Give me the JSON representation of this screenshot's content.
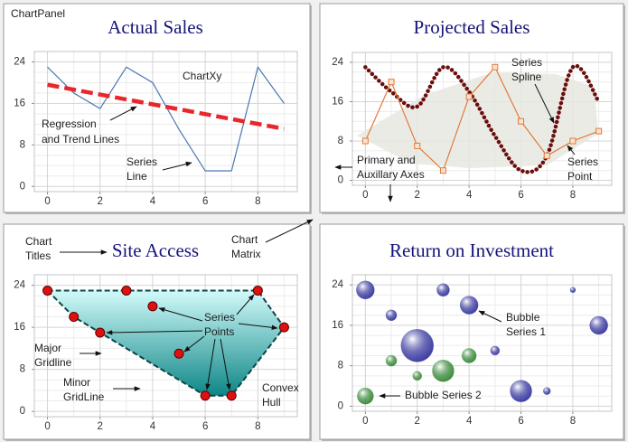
{
  "panel_label": "ChartPanel",
  "chart_data": [
    {
      "type": "line",
      "title": "Actual Sales",
      "x": [
        0,
        1,
        2,
        3,
        4,
        5,
        6,
        7,
        8,
        9
      ],
      "series": [
        {
          "color": "#4a78b0",
          "line_style": "solid",
          "values": [
            23,
            18,
            15,
            23,
            20,
            11,
            3,
            3,
            23,
            16
          ]
        },
        {
          "color": "#e8262b",
          "line_style": "dashed",
          "x": [
            0,
            9
          ],
          "values": [
            19.6,
            11.1
          ]
        }
      ],
      "xlim": [
        -0.5,
        9.5
      ],
      "ylim": [
        -1,
        26
      ],
      "xticks": [
        0,
        2,
        4,
        6,
        8
      ],
      "yticks": [
        0,
        8,
        16,
        24
      ],
      "grid": true,
      "annotations": [
        [
          "ChartXy"
        ],
        [
          "Regression",
          "and Trend Lines"
        ],
        [
          "Series",
          "Line"
        ]
      ]
    },
    {
      "type": "line",
      "title": "Projected Sales",
      "x": [
        0,
        1,
        2,
        3,
        4,
        5,
        6,
        7,
        8,
        9
      ],
      "series": [
        {
          "color": "#6b0d0d",
          "line_style": "dotted",
          "smooth": true,
          "values": [
            23,
            18,
            15,
            23,
            18,
            9,
            2,
            5,
            23,
            16
          ]
        },
        {
          "color": "#e07b39",
          "line_style": "solid",
          "marker": "square",
          "values": [
            8,
            20,
            7,
            2,
            17,
            23,
            12,
            5,
            8,
            10
          ]
        }
      ],
      "xlim": [
        -0.5,
        9.5
      ],
      "ylim": [
        -1,
        26
      ],
      "xticks": [
        0,
        2,
        4,
        6,
        8
      ],
      "yticks": [
        0,
        8,
        16,
        24
      ],
      "grid": true,
      "annotations": [
        [
          "Series",
          "Spline"
        ],
        [
          "Primary and",
          "Auxillary Axes"
        ],
        [
          "Series",
          "Point"
        ]
      ]
    },
    {
      "type": "scatter",
      "title": "Site Access",
      "x": [
        0,
        1,
        2,
        3,
        4,
        5,
        6,
        7,
        8,
        9
      ],
      "values": [
        23,
        18,
        15,
        23,
        20,
        11,
        3,
        3,
        23,
        16
      ],
      "color": "#e01010",
      "hull": true,
      "hull_color": "#0e8686",
      "xlim": [
        -0.5,
        9.5
      ],
      "ylim": [
        -1,
        26
      ],
      "xticks": [
        0,
        2,
        4,
        6,
        8
      ],
      "yticks": [
        0,
        8,
        16,
        24
      ],
      "grid": true,
      "annotations": [
        [
          "Chart",
          "Titles"
        ],
        [
          "Chart",
          "Matrix"
        ],
        [
          "Series",
          "Points"
        ],
        [
          "Major",
          "Gridline"
        ],
        [
          "Minor",
          "GridLine"
        ],
        [
          "Convex",
          "Hull"
        ]
      ]
    },
    {
      "type": "bubble",
      "title": "Return on Investment",
      "series": [
        {
          "color": "#3a3aa0",
          "x": [
            0,
            1,
            2,
            3,
            4,
            5,
            6,
            7,
            8,
            9
          ],
          "values": [
            23,
            18,
            12,
            23,
            20,
            11,
            3,
            3,
            23,
            16
          ],
          "sizes": [
            10,
            6,
            18,
            7,
            10,
            5,
            12,
            4,
            3,
            10
          ]
        },
        {
          "color": "#3a8a3a",
          "x": [
            0,
            1,
            2,
            3,
            4
          ],
          "values": [
            2,
            9,
            6,
            7,
            10
          ],
          "sizes": [
            9,
            6,
            5,
            12,
            8
          ]
        }
      ],
      "xlim": [
        -0.5,
        9.5
      ],
      "ylim": [
        -1,
        26
      ],
      "xticks": [
        0,
        2,
        4,
        6,
        8
      ],
      "yticks": [
        0,
        8,
        16,
        24
      ],
      "grid": true,
      "annotations": [
        [
          "Bubble",
          "Series 1"
        ],
        [
          "Bubble Series 2"
        ]
      ]
    }
  ]
}
